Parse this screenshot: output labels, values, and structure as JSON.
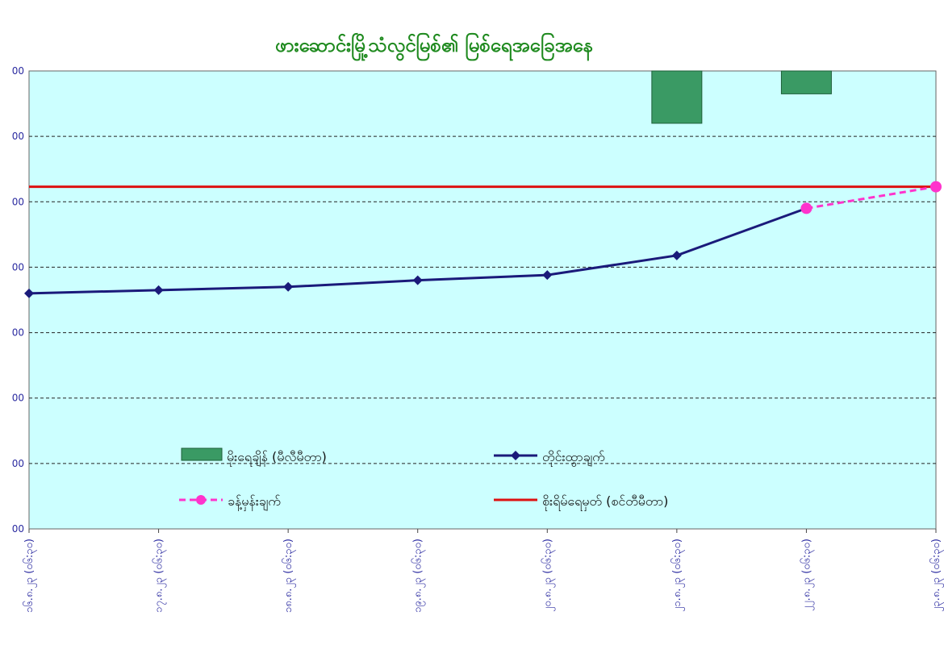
{
  "chart_data": {
    "type": "line",
    "title": "ဖားဆောင်းမြို့သံလွင်မြစ်၏ မြစ်ရေအခြေအနေ",
    "categories": [
      "၁၆.၈.၂၃ (၀၆:၃၀)",
      "၁၇.၈.၂၃ (၀၆:၃၀)",
      "၁၈.၈.၂၃ (၀၆:၃၀)",
      "၁၉.၈.၂၃ (၀၆:၃၀)",
      "၂၀.၈.၂၃ (၀၆:၃၀)",
      "၂၁.၈.၂၃ (၀၆:၃၀)",
      "၂၂.၈.၂၃ (၀၆:၃၀)",
      "၂၃.၈.၂၃ (၀၆:၃၀)"
    ],
    "ylim": [
      0,
      7
    ],
    "yticks": [
      0,
      1,
      2,
      3,
      4,
      5,
      6,
      7
    ],
    "ytick_labels": [
      "00",
      "00",
      "00",
      "00",
      "00",
      "00",
      "00",
      "00"
    ],
    "grid": true,
    "series": [
      {
        "name": "မိုးရေချိန် (မီလီမီတာ)",
        "kind": "bar",
        "hanging_from_top": true,
        "color": "#3a9a64",
        "values": [
          0,
          0,
          0,
          0,
          0,
          0.8,
          0.35,
          0
        ]
      },
      {
        "name": "တိုင်းထွာချက်",
        "kind": "line",
        "marker": "diamond",
        "color": "#1a1a7a",
        "values": [
          3.6,
          3.65,
          3.7,
          3.8,
          3.88,
          4.18,
          4.9,
          null
        ]
      },
      {
        "name": "ခန့်မှန်းချက်",
        "kind": "line",
        "dashed": true,
        "marker": "circle",
        "color": "#ff33cc",
        "values": [
          null,
          null,
          null,
          null,
          null,
          null,
          4.9,
          5.23
        ]
      },
      {
        "name": "စိုးရိမ်ရေမှတ် (စင်တီမီတာ)",
        "kind": "hline",
        "color": "#dd1111",
        "value": 5.23
      }
    ],
    "legend_position": "bottom-inside"
  }
}
